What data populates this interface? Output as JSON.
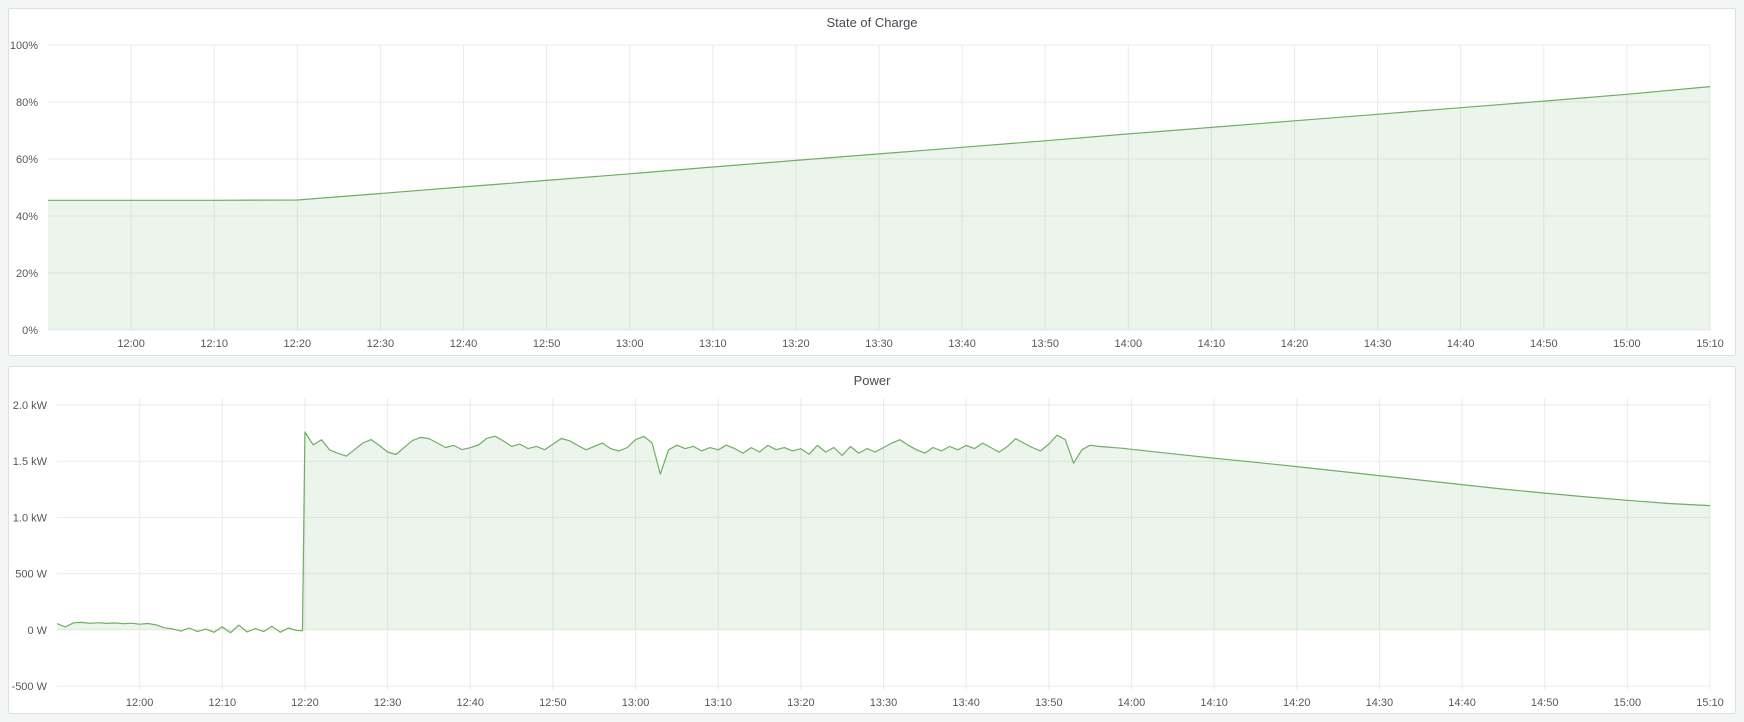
{
  "page": {
    "background": "#f4f5f5"
  },
  "panels": [
    {
      "title": "State of Charge"
    },
    {
      "title": "Power"
    }
  ],
  "colors": {
    "series_green": "#6fae63",
    "series_green_fill": "rgba(111,174,99,0.13)",
    "gridline": "#ebebeb",
    "tick_text": "#54585e"
  },
  "chart_data": [
    {
      "type": "area",
      "title": "State of Charge",
      "unit": "%",
      "x_axis": "time (HH:MM), range 11:50 to 15:10, minutes offset t from 11:50",
      "ylim": [
        0,
        100
      ],
      "legend": "none",
      "grid": true,
      "x_ticks": [
        {
          "t": 10,
          "label": "12:00"
        },
        {
          "t": 20,
          "label": "12:10"
        },
        {
          "t": 30,
          "label": "12:20"
        },
        {
          "t": 40,
          "label": "12:30"
        },
        {
          "t": 50,
          "label": "12:40"
        },
        {
          "t": 60,
          "label": "12:50"
        },
        {
          "t": 70,
          "label": "13:00"
        },
        {
          "t": 80,
          "label": "13:10"
        },
        {
          "t": 90,
          "label": "13:20"
        },
        {
          "t": 100,
          "label": "13:30"
        },
        {
          "t": 110,
          "label": "13:40"
        },
        {
          "t": 120,
          "label": "13:50"
        },
        {
          "t": 130,
          "label": "14:00"
        },
        {
          "t": 140,
          "label": "14:10"
        },
        {
          "t": 150,
          "label": "14:20"
        },
        {
          "t": 160,
          "label": "14:30"
        },
        {
          "t": 170,
          "label": "14:40"
        },
        {
          "t": 180,
          "label": "14:50"
        },
        {
          "t": 190,
          "label": "15:00"
        },
        {
          "t": 200,
          "label": "15:10"
        }
      ],
      "y_ticks": [
        {
          "v": 100,
          "label": "100%"
        },
        {
          "v": 80,
          "label": "80%"
        },
        {
          "v": 60,
          "label": "60%"
        },
        {
          "v": 40,
          "label": "40%"
        },
        {
          "v": 20,
          "label": "20%"
        },
        {
          "v": 0,
          "label": "0%"
        }
      ],
      "series": [
        {
          "name": "State of Charge",
          "color": "#6fae63",
          "fill": "rgba(111,174,99,0.13)",
          "fill_to": 0,
          "points": [
            [
              0,
              45.5
            ],
            [
              10,
              45.5
            ],
            [
              20,
              45.5
            ],
            [
              30,
              45.6
            ],
            [
              40,
              47.9
            ],
            [
              50,
              50.2
            ],
            [
              60,
              52.5
            ],
            [
              70,
              54.8
            ],
            [
              80,
              57.2
            ],
            [
              90,
              59.5
            ],
            [
              100,
              61.8
            ],
            [
              110,
              64.1
            ],
            [
              120,
              66.4
            ],
            [
              130,
              68.8
            ],
            [
              140,
              71.1
            ],
            [
              150,
              73.4
            ],
            [
              160,
              75.7
            ],
            [
              170,
              78.0
            ],
            [
              180,
              80.3
            ],
            [
              190,
              82.7
            ],
            [
              200,
              85.4
            ]
          ]
        }
      ]
    },
    {
      "type": "area",
      "title": "Power",
      "unit": "W",
      "x_axis": "time (HH:MM), range 11:50 to 15:10, minutes offset t from 11:50",
      "ylim": [
        -500,
        2000
      ],
      "legend": "none",
      "grid": true,
      "x_ticks": [
        {
          "t": 10,
          "label": "12:00"
        },
        {
          "t": 20,
          "label": "12:10"
        },
        {
          "t": 30,
          "label": "12:20"
        },
        {
          "t": 40,
          "label": "12:30"
        },
        {
          "t": 50,
          "label": "12:40"
        },
        {
          "t": 60,
          "label": "12:50"
        },
        {
          "t": 70,
          "label": "13:00"
        },
        {
          "t": 80,
          "label": "13:10"
        },
        {
          "t": 90,
          "label": "13:20"
        },
        {
          "t": 100,
          "label": "13:30"
        },
        {
          "t": 110,
          "label": "13:40"
        },
        {
          "t": 120,
          "label": "13:50"
        },
        {
          "t": 130,
          "label": "14:00"
        },
        {
          "t": 140,
          "label": "14:10"
        },
        {
          "t": 150,
          "label": "14:20"
        },
        {
          "t": 160,
          "label": "14:30"
        },
        {
          "t": 170,
          "label": "14:40"
        },
        {
          "t": 180,
          "label": "14:50"
        },
        {
          "t": 190,
          "label": "15:00"
        },
        {
          "t": 200,
          "label": "15:10"
        }
      ],
      "y_ticks": [
        {
          "v": 2000,
          "label": "2.0 kW"
        },
        {
          "v": 1500,
          "label": "1.5 kW"
        },
        {
          "v": 1000,
          "label": "1.0 kW"
        },
        {
          "v": 500,
          "label": "500 W"
        },
        {
          "v": 0,
          "label": "0 W"
        },
        {
          "v": -500,
          "label": "-500 W"
        }
      ],
      "series": [
        {
          "name": "Power",
          "color": "#6fae63",
          "fill": "rgba(111,174,99,0.13)",
          "fill_to": 0,
          "points": [
            [
              0,
              55
            ],
            [
              1,
              25
            ],
            [
              2,
              62
            ],
            [
              3,
              66
            ],
            [
              4,
              58
            ],
            [
              5,
              63
            ],
            [
              6,
              57
            ],
            [
              7,
              61
            ],
            [
              8,
              54
            ],
            [
              9,
              59
            ],
            [
              10,
              50
            ],
            [
              11,
              56
            ],
            [
              12,
              44
            ],
            [
              13,
              18
            ],
            [
              14,
              8
            ],
            [
              15,
              -12
            ],
            [
              16,
              16
            ],
            [
              17,
              -16
            ],
            [
              18,
              6
            ],
            [
              19,
              -22
            ],
            [
              20,
              26
            ],
            [
              21,
              -26
            ],
            [
              22,
              42
            ],
            [
              23,
              -20
            ],
            [
              24,
              12
            ],
            [
              25,
              -16
            ],
            [
              26,
              32
            ],
            [
              27,
              -22
            ],
            [
              28,
              16
            ],
            [
              29,
              -6
            ],
            [
              29.7,
              -8
            ],
            [
              30,
              1760
            ],
            [
              31,
              1645
            ],
            [
              32,
              1690
            ],
            [
              33,
              1600
            ],
            [
              34,
              1570
            ],
            [
              35,
              1545
            ],
            [
              36,
              1602
            ],
            [
              37,
              1662
            ],
            [
              38,
              1692
            ],
            [
              39,
              1641
            ],
            [
              40,
              1582
            ],
            [
              41,
              1560
            ],
            [
              42,
              1621
            ],
            [
              43,
              1683
            ],
            [
              44,
              1712
            ],
            [
              45,
              1701
            ],
            [
              46,
              1663
            ],
            [
              47,
              1622
            ],
            [
              48,
              1641
            ],
            [
              49,
              1603
            ],
            [
              50,
              1620
            ],
            [
              51,
              1644
            ],
            [
              52,
              1703
            ],
            [
              53,
              1722
            ],
            [
              54,
              1681
            ],
            [
              55,
              1632
            ],
            [
              56,
              1652
            ],
            [
              57,
              1612
            ],
            [
              58,
              1632
            ],
            [
              59,
              1602
            ],
            [
              60,
              1651
            ],
            [
              61,
              1702
            ],
            [
              62,
              1682
            ],
            [
              63,
              1641
            ],
            [
              64,
              1601
            ],
            [
              65,
              1632
            ],
            [
              66,
              1661
            ],
            [
              67,
              1611
            ],
            [
              68,
              1591
            ],
            [
              69,
              1622
            ],
            [
              70,
              1691
            ],
            [
              71,
              1721
            ],
            [
              72,
              1663
            ],
            [
              73,
              1385
            ],
            [
              74,
              1601
            ],
            [
              75,
              1642
            ],
            [
              76,
              1612
            ],
            [
              77,
              1632
            ],
            [
              78,
              1592
            ],
            [
              79,
              1621
            ],
            [
              80,
              1601
            ],
            [
              81,
              1642
            ],
            [
              82,
              1612
            ],
            [
              83,
              1572
            ],
            [
              84,
              1621
            ],
            [
              85,
              1582
            ],
            [
              86,
              1641
            ],
            [
              87,
              1602
            ],
            [
              88,
              1621
            ],
            [
              89,
              1592
            ],
            [
              90,
              1611
            ],
            [
              91,
              1562
            ],
            [
              92,
              1641
            ],
            [
              93,
              1582
            ],
            [
              94,
              1622
            ],
            [
              95,
              1552
            ],
            [
              96,
              1631
            ],
            [
              97,
              1572
            ],
            [
              98,
              1612
            ],
            [
              99,
              1582
            ],
            [
              100,
              1621
            ],
            [
              101,
              1661
            ],
            [
              102,
              1691
            ],
            [
              103,
              1642
            ],
            [
              104,
              1601
            ],
            [
              105,
              1572
            ],
            [
              106,
              1622
            ],
            [
              107,
              1592
            ],
            [
              108,
              1631
            ],
            [
              109,
              1601
            ],
            [
              110,
              1641
            ],
            [
              111,
              1612
            ],
            [
              112,
              1661
            ],
            [
              113,
              1621
            ],
            [
              114,
              1581
            ],
            [
              115,
              1632
            ],
            [
              116,
              1701
            ],
            [
              117,
              1661
            ],
            [
              118,
              1622
            ],
            [
              119,
              1592
            ],
            [
              120,
              1652
            ],
            [
              121,
              1731
            ],
            [
              122,
              1692
            ],
            [
              123,
              1482
            ],
            [
              124,
              1601
            ],
            [
              125,
              1642
            ],
            [
              126,
              1632
            ],
            [
              127,
              1626
            ],
            [
              128,
              1620
            ],
            [
              129,
              1615
            ],
            [
              130,
              1606
            ],
            [
              135,
              1566
            ],
            [
              140,
              1527
            ],
            [
              145,
              1490
            ],
            [
              150,
              1452
            ],
            [
              155,
              1412
            ],
            [
              160,
              1372
            ],
            [
              165,
              1332
            ],
            [
              170,
              1292
            ],
            [
              175,
              1252
            ],
            [
              180,
              1216
            ],
            [
              185,
              1182
            ],
            [
              190,
              1152
            ],
            [
              195,
              1124
            ],
            [
              200,
              1105
            ]
          ]
        }
      ]
    }
  ]
}
